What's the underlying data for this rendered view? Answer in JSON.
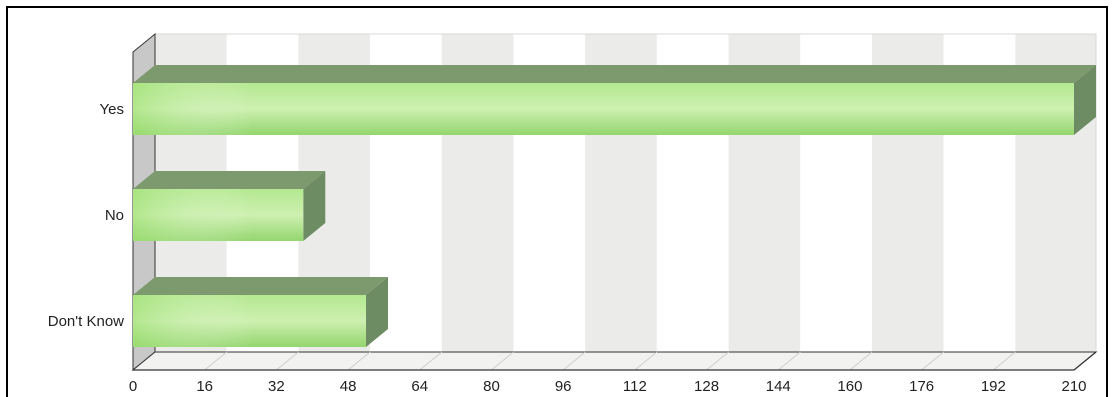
{
  "chart_data": {
    "type": "bar",
    "orientation": "horizontal",
    "three_d": true,
    "categories": [
      "Yes",
      "No",
      "Don't Know"
    ],
    "values": [
      210,
      38,
      52
    ],
    "x_ticks": [
      "0",
      "16",
      "32",
      "48",
      "64",
      "80",
      "96",
      "112",
      "128",
      "144",
      "160",
      "176",
      "192",
      "210"
    ],
    "xlim": [
      0,
      210
    ],
    "grid": "vertical alternating bands",
    "legend": "none"
  },
  "colors": {
    "bar_light": "#c6eea6",
    "bar_mid": "#a8e07f",
    "bar_dark": "#8fd268",
    "bar_top": "#7c9a6e",
    "bar_side": "#6e8c63",
    "band": "#ebebe9",
    "band_alt": "#ffffff",
    "axis": "#333333"
  }
}
